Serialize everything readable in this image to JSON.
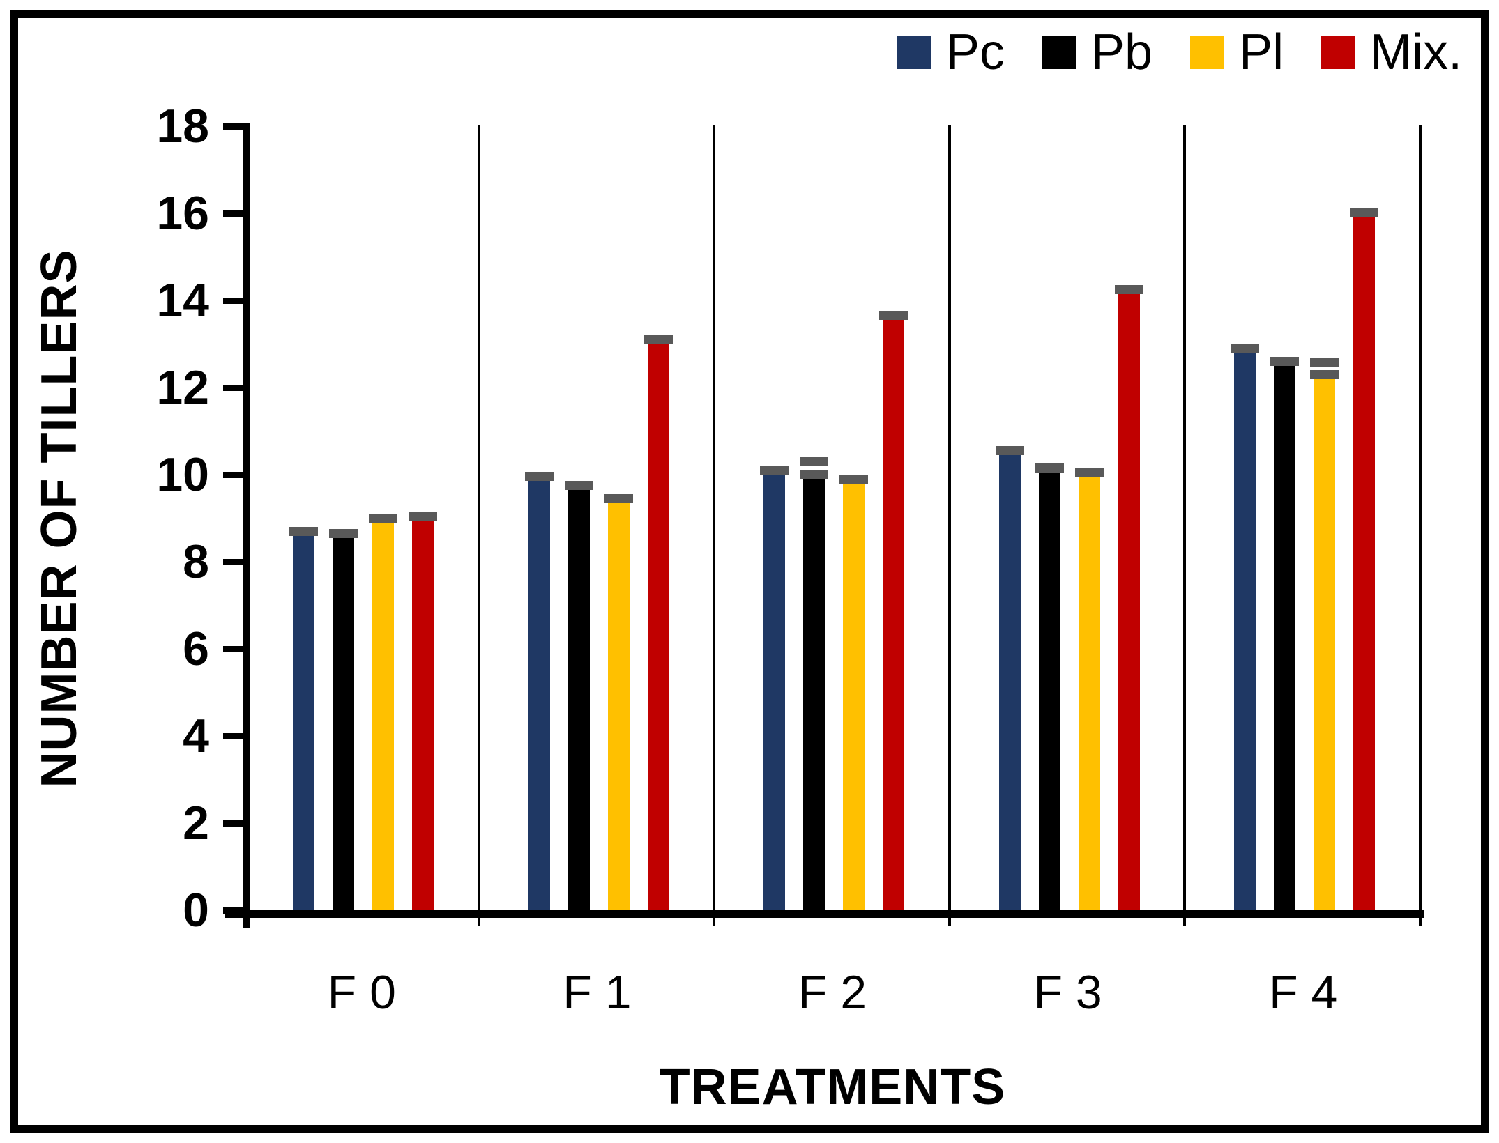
{
  "chart": {
    "background": "#FFFFFF",
    "frame_color": "#000000"
  },
  "legend": {
    "items": [
      {
        "label": "Pc",
        "color": "#1F3864"
      },
      {
        "label": "Pb",
        "color": "#000000"
      },
      {
        "label": "Pl",
        "color": "#FFC000"
      },
      {
        "label": "Mix.",
        "color": "#C00000"
      }
    ]
  },
  "y_axis": {
    "title": "NUMBER OF TILLERS",
    "tick_values": [
      0,
      2,
      4,
      6,
      8,
      10,
      12,
      14,
      16,
      18
    ],
    "min": 0,
    "max": 18
  },
  "x_axis": {
    "title": "TREATMENTS",
    "categories": [
      "F 0",
      "F 1",
      "F 2",
      "F 3",
      "F 4"
    ]
  },
  "chart_data": {
    "type": "bar",
    "title": "",
    "xlabel": "TREATMENTS",
    "ylabel": "NUMBER OF TILLERS",
    "ylim": [
      0,
      18
    ],
    "ytick_step": 2,
    "grid": false,
    "legend_position": "top-right",
    "group_separators": true,
    "error_cap_color": "#595959",
    "categories": [
      "F 0",
      "F 1",
      "F 2",
      "F 3",
      "F 4"
    ],
    "series": [
      {
        "name": "Pc",
        "color": "#1F3864",
        "values": [
          8.6,
          9.85,
          10.0,
          10.45,
          12.8
        ],
        "errors": [
          0.2,
          0.2,
          0.2,
          0.2,
          0.2
        ],
        "double_cap": [
          false,
          false,
          false,
          false,
          false
        ]
      },
      {
        "name": "Pb",
        "color": "#000000",
        "values": [
          8.55,
          9.65,
          9.9,
          10.05,
          12.5
        ],
        "errors": [
          0.2,
          0.2,
          0.2,
          0.2,
          0.2
        ],
        "double_cap": [
          false,
          false,
          true,
          false,
          false
        ]
      },
      {
        "name": "Pl",
        "color": "#FFC000",
        "values": [
          8.9,
          9.35,
          9.8,
          9.95,
          12.2
        ],
        "errors": [
          0.2,
          0.2,
          0.2,
          0.2,
          0.2
        ],
        "double_cap": [
          false,
          false,
          false,
          false,
          true
        ]
      },
      {
        "name": "Mix.",
        "color": "#C00000",
        "values": [
          8.95,
          13.0,
          13.55,
          14.15,
          15.9
        ],
        "errors": [
          0.2,
          0.2,
          0.2,
          0.2,
          0.2
        ],
        "double_cap": [
          false,
          false,
          false,
          false,
          false
        ]
      }
    ]
  }
}
